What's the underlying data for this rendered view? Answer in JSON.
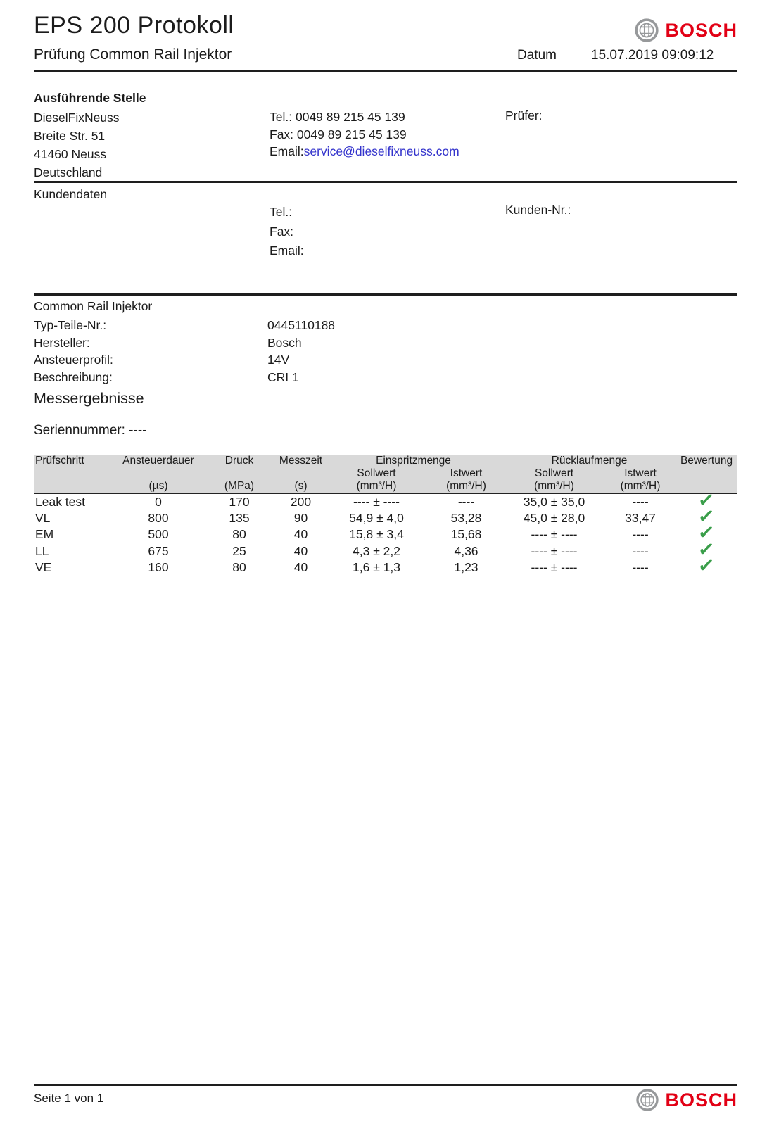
{
  "colors": {
    "bosch_red": "#e20015",
    "link_blue": "#3333cc",
    "check_green": "#3a9e4a",
    "table_header_bg": "#d9d9d9"
  },
  "header": {
    "title": "EPS 200 Protokoll",
    "subtitle": "Prüfung Common Rail Injektor",
    "date_label": "Datum",
    "date_value": "15.07.2019 09:09:12",
    "brand": "BOSCH"
  },
  "executing_office": {
    "heading": "Ausführende Stelle",
    "address_lines": [
      "DieselFixNeuss",
      "Breite Str. 51",
      "41460 Neuss",
      "Deutschland"
    ],
    "tel_label": "Tel.:",
    "tel_value": "0049 89 215 45 139",
    "fax_label": "Fax:",
    "fax_value": "0049 89 215 45 139",
    "email_label": "Email:",
    "email_value": "service@dieselfixneuss.com",
    "examiner_label": "Prüfer:"
  },
  "customer": {
    "heading": "Kundendaten",
    "tel_label": "Tel.:",
    "fax_label": "Fax:",
    "email_label": "Email:",
    "customer_no_label": "Kunden-Nr.:"
  },
  "injector": {
    "heading": "Common Rail Injektor",
    "rows": [
      {
        "label": "Typ-Teile-Nr.:",
        "value": "0445110188"
      },
      {
        "label": "Hersteller:",
        "value": "Bosch"
      },
      {
        "label": "Ansteuerprofil:",
        "value": "14V"
      },
      {
        "label": "Beschreibung:",
        "value": "CRI 1"
      }
    ]
  },
  "results": {
    "heading": "Messergebnisse",
    "serial_label": "Seriennummer:",
    "serial_value": "----"
  },
  "table": {
    "columns": [
      "Prüfschritt",
      "Ansteuerdauer",
      "Druck",
      "Messzeit",
      "Einspritzmenge",
      "Rücklaufmenge",
      "Bewertung"
    ],
    "subheaders": {
      "sollwert": "Sollwert",
      "istwert": "Istwert"
    },
    "units": {
      "ansteuerdauer": "(µs)",
      "druck": "(MPa)",
      "messzeit": "(s)",
      "menge": "(mm³/H)"
    },
    "check_glyph": "✓",
    "rows": [
      {
        "pruefschritt": "Leak test",
        "ansteuerdauer": "0",
        "druck": "170",
        "messzeit": "200",
        "einspritz_soll": "---- ± ----",
        "einspritz_ist": "----",
        "ruecklauf_soll": "35,0 ± 35,0",
        "ruecklauf_ist": "----",
        "bewertung": "pass"
      },
      {
        "pruefschritt": "VL",
        "ansteuerdauer": "800",
        "druck": "135",
        "messzeit": "90",
        "einspritz_soll": "54,9 ± 4,0",
        "einspritz_ist": "53,28",
        "ruecklauf_soll": "45,0 ± 28,0",
        "ruecklauf_ist": "33,47",
        "bewertung": "pass"
      },
      {
        "pruefschritt": "EM",
        "ansteuerdauer": "500",
        "druck": "80",
        "messzeit": "40",
        "einspritz_soll": "15,8 ± 3,4",
        "einspritz_ist": "15,68",
        "ruecklauf_soll": "---- ± ----",
        "ruecklauf_ist": "----",
        "bewertung": "pass"
      },
      {
        "pruefschritt": "LL",
        "ansteuerdauer": "675",
        "druck": "25",
        "messzeit": "40",
        "einspritz_soll": "4,3 ± 2,2",
        "einspritz_ist": "4,36",
        "ruecklauf_soll": "---- ± ----",
        "ruecklauf_ist": "----",
        "bewertung": "pass"
      },
      {
        "pruefschritt": "VE",
        "ansteuerdauer": "160",
        "druck": "80",
        "messzeit": "40",
        "einspritz_soll": "1,6 ± 1,3",
        "einspritz_ist": "1,23",
        "ruecklauf_soll": "---- ± ----",
        "ruecklauf_ist": "----",
        "bewertung": "pass"
      }
    ]
  },
  "footer": {
    "page_label": "Seite 1 von 1",
    "brand": "BOSCH"
  }
}
